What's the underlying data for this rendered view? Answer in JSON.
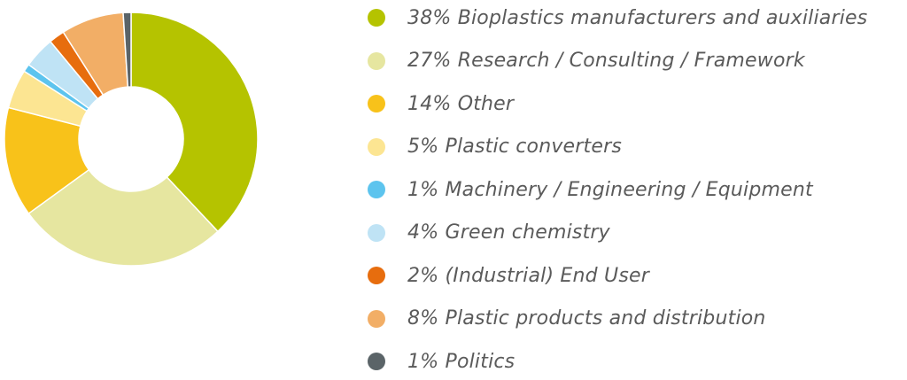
{
  "chart_data": {
    "type": "pie",
    "variant": "donut",
    "title": "",
    "legend_position": "right",
    "slices": [
      {
        "label": "38% Bioplastics manufacturers and auxiliaries",
        "value": 38,
        "color": "#b5c300"
      },
      {
        "label": "27% Research / Consulting / Framework",
        "value": 27,
        "color": "#e6e6a0"
      },
      {
        "label": "14% Other",
        "value": 14,
        "color": "#f8c21a"
      },
      {
        "label": "5% Plastic converters",
        "value": 5,
        "color": "#fce592"
      },
      {
        "label": "1% Machinery / Engineering / Equipment",
        "value": 1,
        "color": "#5dc4ee"
      },
      {
        "label": "4% Green chemistry",
        "value": 4,
        "color": "#bfe3f5"
      },
      {
        "label": "2% (Industrial) End User",
        "value": 2,
        "color": "#e76d0e"
      },
      {
        "label": "8% Plastic products and distribution",
        "value": 8,
        "color": "#f2ae66"
      },
      {
        "label": "1% Politics",
        "value": 1,
        "color": "#5b6468"
      }
    ]
  }
}
